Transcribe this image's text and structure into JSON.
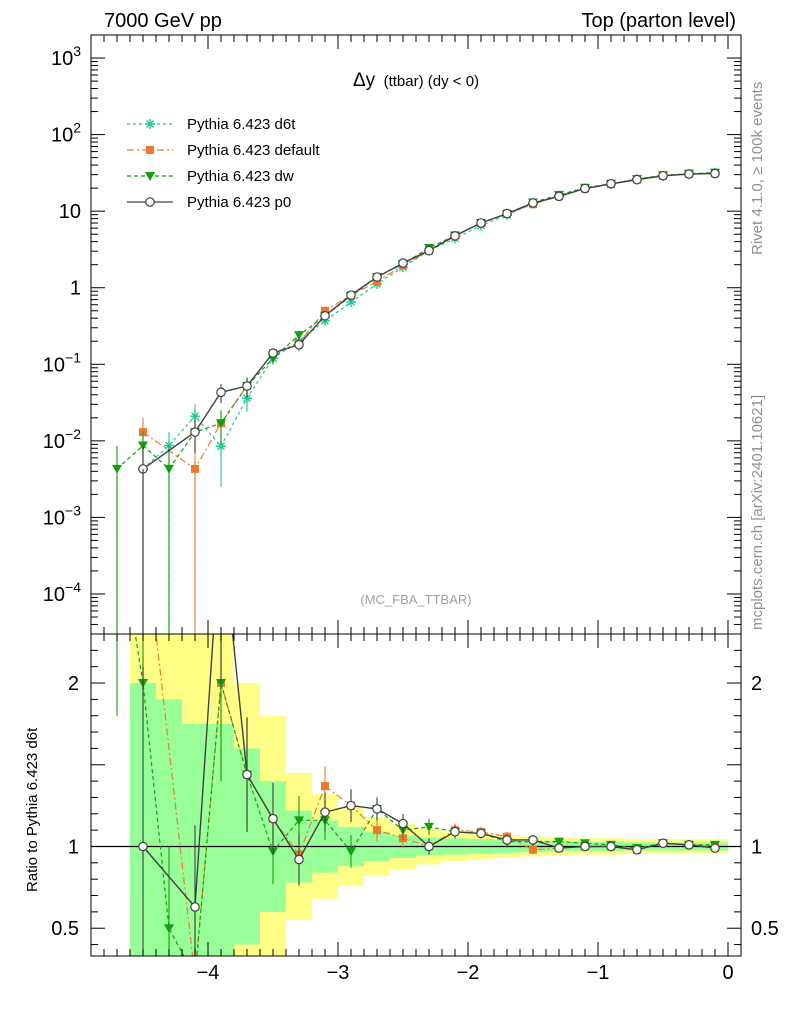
{
  "header": {
    "left": "7000 GeV pp",
    "right": "Top (parton level)"
  },
  "side_labels": {
    "rivet": "Rivet 4.1.0, ≥ 100k events",
    "mcplots": "mcplots.cern.ch [arXiv:2401.10621]"
  },
  "colors": {
    "d6t": "#20c898",
    "default": "#f07830",
    "dw": "#10a010",
    "p0": "#404040",
    "band_inner": "#99ff99",
    "band_outer": "#ffff88"
  },
  "chart_data": [
    {
      "type": "line",
      "title_main": "Δy",
      "title_sub": "(ttbar) (dy < 0)",
      "watermark": "(MC_FBA_TTBAR)",
      "yscale": "log",
      "xlim": [
        -4.9,
        0.1
      ],
      "ylim": [
        3e-05,
        2000
      ],
      "legend_position": "top-left",
      "yticks": [
        {
          "value": 0.0001,
          "label": "10^-4"
        },
        {
          "value": 0.001,
          "label": "10^-3"
        },
        {
          "value": 0.01,
          "label": "10^-2"
        },
        {
          "value": 0.1,
          "label": "10^-1"
        },
        {
          "value": 1,
          "label": "1"
        },
        {
          "value": 10,
          "label": "10"
        },
        {
          "value": 100,
          "label": "10^2"
        },
        {
          "value": 1000,
          "label": "10^3"
        }
      ],
      "series": [
        {
          "key": "d6t",
          "name": "Pythia 6.423 d6t",
          "dash": "3,3",
          "marker": "star",
          "x": [
            -4.5,
            -4.3,
            -4.1,
            -3.9,
            -3.7,
            -3.5,
            -3.3,
            -3.1,
            -2.9,
            -2.7,
            -2.5,
            -2.3,
            -2.1,
            -1.9,
            -1.7,
            -1.5,
            -1.3,
            -1.1,
            -0.9,
            -0.7,
            -0.5,
            -0.3,
            -0.1
          ],
          "y": [
            0.0043,
            0.0087,
            0.021,
            0.0085,
            0.036,
            0.12,
            0.2,
            0.37,
            0.65,
            1.12,
            1.85,
            3.05,
            4.4,
            6.5,
            8.9,
            12.6,
            15.9,
            19.8,
            22.5,
            26.5,
            28.8,
            30.5,
            31.5
          ],
          "err": [
            0.0043,
            0.0043,
            0.009,
            0.006,
            0.012,
            0.02,
            0.03,
            0.04,
            0.05,
            0.07,
            0.1,
            0.12,
            0.15,
            0.2,
            0.2,
            0.25,
            0.3,
            0.3,
            0.3,
            0.35,
            0.35,
            0.35,
            0.35
          ]
        },
        {
          "key": "default",
          "name": "Pythia 6.423 default",
          "dash": "7,3,2,3",
          "marker": "square",
          "x": [
            -4.5,
            -4.1,
            -3.9,
            -3.7,
            -3.5,
            -3.3,
            -3.1,
            -2.9,
            -2.7,
            -2.5,
            -2.3,
            -2.1,
            -1.9,
            -1.7,
            -1.5,
            -1.3,
            -1.1,
            -0.9,
            -0.7,
            -0.5,
            -0.3,
            -0.1
          ],
          "y": [
            0.013,
            0.0043,
            0.017,
            0.052,
            0.14,
            0.19,
            0.5,
            0.8,
            1.2,
            1.95,
            3.05,
            4.85,
            7.0,
            9.3,
            12.3,
            15.7,
            19.6,
            22.6,
            26.0,
            29.2,
            30.8,
            31.2
          ],
          "err": [
            0.007,
            0.0043,
            0.008,
            0.015,
            0.02,
            0.03,
            0.05,
            0.06,
            0.08,
            0.1,
            0.12,
            0.15,
            0.2,
            0.2,
            0.25,
            0.3,
            0.3,
            0.3,
            0.35,
            0.35,
            0.35,
            0.35
          ]
        },
        {
          "key": "dw",
          "name": "Pythia 6.423 dw",
          "dash": "4,3",
          "marker": "triangle-down",
          "x": [
            -4.7,
            -4.5,
            -4.3,
            -4.1,
            -3.9,
            -3.7,
            -3.5,
            -3.3,
            -3.1,
            -2.9,
            -2.7,
            -2.5,
            -2.3,
            -2.1,
            -1.9,
            -1.7,
            -1.5,
            -1.3,
            -1.1,
            -0.9,
            -0.7,
            -0.5,
            -0.3,
            -0.1
          ],
          "y": [
            0.0043,
            0.0087,
            0.0043,
            0.013,
            0.017,
            0.052,
            0.12,
            0.24,
            0.43,
            0.78,
            1.38,
            2.05,
            3.3,
            4.8,
            7.0,
            9.2,
            13.0,
            16.3,
            20.2,
            22.8,
            26.2,
            29.5,
            30.8,
            31.9
          ],
          "err": [
            0.0043,
            0.0043,
            0.0043,
            0.006,
            0.008,
            0.015,
            0.02,
            0.03,
            0.05,
            0.06,
            0.08,
            0.1,
            0.12,
            0.15,
            0.2,
            0.2,
            0.25,
            0.3,
            0.3,
            0.3,
            0.35,
            0.35,
            0.35,
            0.35
          ]
        },
        {
          "key": "p0",
          "name": "Pythia 6.423 p0",
          "dash": "",
          "marker": "circle",
          "x": [
            -4.5,
            -4.1,
            -3.9,
            -3.7,
            -3.5,
            -3.3,
            -3.1,
            -2.9,
            -2.7,
            -2.5,
            -2.3,
            -2.1,
            -1.9,
            -1.7,
            -1.5,
            -1.3,
            -1.1,
            -0.9,
            -0.7,
            -0.5,
            -0.3,
            -0.1
          ],
          "y": [
            0.0043,
            0.013,
            0.043,
            0.052,
            0.14,
            0.18,
            0.43,
            0.8,
            1.38,
            2.1,
            3.05,
            4.75,
            7.0,
            9.3,
            12.8,
            15.6,
            19.8,
            22.8,
            25.8,
            29.0,
            30.5,
            31.0
          ],
          "err": [
            0.0043,
            0.006,
            0.012,
            0.015,
            0.02,
            0.03,
            0.05,
            0.06,
            0.08,
            0.1,
            0.12,
            0.15,
            0.2,
            0.2,
            0.25,
            0.3,
            0.3,
            0.3,
            0.35,
            0.35,
            0.35,
            0.35
          ]
        }
      ]
    },
    {
      "type": "line",
      "ylabel": "Ratio to Pythia 6.423 d6t",
      "xlim": [
        -4.9,
        0.1
      ],
      "ylim": [
        0.33,
        2.3
      ],
      "reference_line": 1,
      "xticks": [
        {
          "value": -4,
          "label": "−4"
        },
        {
          "value": -3,
          "label": "−3"
        },
        {
          "value": -2,
          "label": "−2"
        },
        {
          "value": -1,
          "label": "−1"
        },
        {
          "value": 0,
          "label": "0"
        }
      ],
      "yticks": [
        {
          "value": 0.5,
          "label": "0.5"
        },
        {
          "value": 1,
          "label": "1"
        },
        {
          "value": 2,
          "label": "2"
        }
      ],
      "band": {
        "edges": [
          -4.6,
          -4.4,
          -4.2,
          -4.0,
          -3.8,
          -3.6,
          -3.4,
          -3.2,
          -3.0,
          -2.8,
          -2.6,
          -2.4,
          -2.2,
          -2.0,
          -1.8,
          -1.6,
          -1.4,
          -1.2,
          -1.0,
          -0.8,
          -0.6,
          -0.4,
          -0.2,
          0.0
        ],
        "inner": [
          1.0,
          0.9,
          0.75,
          0.75,
          0.6,
          0.4,
          0.22,
          0.16,
          0.12,
          0.09,
          0.07,
          0.055,
          0.05,
          0.045,
          0.04,
          0.035,
          0.03,
          0.03,
          0.03,
          0.025,
          0.025,
          0.025,
          0.025
        ],
        "outer": [
          2.0,
          2.0,
          1.9,
          1.9,
          1.0,
          0.8,
          0.45,
          0.32,
          0.24,
          0.18,
          0.14,
          0.11,
          0.09,
          0.08,
          0.07,
          0.06,
          0.055,
          0.05,
          0.05,
          0.045,
          0.045,
          0.045,
          0.045
        ]
      },
      "series": [
        {
          "key": "default",
          "x": [
            -4.5,
            -4.1,
            -3.9,
            -3.7,
            -3.5,
            -3.3,
            -3.1,
            -2.9,
            -2.7,
            -2.5,
            -2.3,
            -2.1,
            -1.9,
            -1.7,
            -1.5,
            -1.3,
            -1.1,
            -0.9,
            -0.7,
            -0.5,
            -0.3,
            -0.1
          ],
          "y": [
            3.0,
            0.2,
            2.0,
            1.44,
            1.17,
            0.95,
            1.37,
            1.25,
            1.1,
            1.05,
            1.0,
            1.1,
            1.09,
            1.06,
            0.98,
            0.99,
            1.0,
            1.0,
            0.98,
            1.02,
            1.01,
            1.0
          ],
          "err": [
            1.2,
            0.4,
            0.6,
            0.35,
            0.2,
            0.15,
            0.12,
            0.1,
            0.07,
            0.06,
            0.05,
            0.04,
            0.03,
            0.03,
            0.025,
            0.02,
            0.02,
            0.02,
            0.02,
            0.02,
            0.02,
            0.02
          ]
        },
        {
          "key": "dw",
          "x": [
            -4.7,
            -4.5,
            -4.3,
            -4.1,
            -3.9,
            -3.7,
            -3.5,
            -3.3,
            -3.1,
            -2.9,
            -2.7,
            -2.5,
            -2.3,
            -2.1,
            -1.9,
            -1.7,
            -1.5,
            -1.3,
            -1.1,
            -0.9,
            -0.7,
            -0.5,
            -0.3,
            -0.1
          ],
          "y": [
            3.0,
            2.0,
            0.5,
            0.2,
            2.0,
            1.44,
            0.97,
            1.16,
            1.16,
            0.97,
            1.23,
            1.1,
            1.12,
            1.09,
            1.08,
            1.03,
            1.03,
            1.03,
            1.02,
            1.01,
            0.99,
            1.02,
            1.01,
            1.01
          ],
          "err": [
            1.2,
            1.3,
            0.5,
            0.4,
            0.6,
            0.35,
            0.2,
            0.15,
            0.12,
            0.1,
            0.07,
            0.06,
            0.05,
            0.04,
            0.03,
            0.03,
            0.025,
            0.02,
            0.02,
            0.02,
            0.02,
            0.02,
            0.02,
            0.02
          ]
        },
        {
          "key": "p0",
          "x": [
            -4.5,
            -4.1,
            -3.9,
            -3.7,
            -3.5,
            -3.3,
            -3.1,
            -2.9,
            -2.7,
            -2.5,
            -2.3,
            -2.1,
            -1.9,
            -1.7,
            -1.5,
            -1.3,
            -1.1,
            -0.9,
            -0.7,
            -0.5,
            -0.3,
            -0.1
          ],
          "y": [
            1.0,
            0.63,
            3.0,
            1.44,
            1.17,
            0.92,
            1.21,
            1.25,
            1.23,
            1.14,
            1.0,
            1.09,
            1.08,
            1.04,
            1.04,
            0.99,
            1.0,
            1.0,
            0.98,
            1.02,
            1.01,
            0.99
          ],
          "err": [
            1.1,
            0.5,
            1.0,
            0.35,
            0.22,
            0.16,
            0.12,
            0.1,
            0.07,
            0.06,
            0.05,
            0.04,
            0.03,
            0.03,
            0.025,
            0.02,
            0.02,
            0.02,
            0.02,
            0.02,
            0.02,
            0.02
          ]
        }
      ]
    }
  ]
}
